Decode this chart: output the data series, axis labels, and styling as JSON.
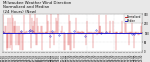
{
  "title": "Milwaukee Weather Wind Direction\nNormalized and Median\n(24 Hours) (New)",
  "bg_color": "#e8e8e8",
  "plot_bg": "#ffffff",
  "ylim": [
    -5,
    365
  ],
  "ytick_vals": [
    0,
    90,
    180,
    270,
    360
  ],
  "ytick_labels": [
    "0",
    "90",
    "180",
    "270",
    "360"
  ],
  "median_value": 180,
  "median_color": "#0000cc",
  "spike_color": "#cc0000",
  "dot_color_blue": "#0000cc",
  "num_points": 288,
  "legend_labels": [
    "Normalized",
    "Median"
  ],
  "legend_colors": [
    "#cc0000",
    "#0000cc"
  ],
  "grid_color": "#c8c8c8",
  "title_fontsize": 2.8,
  "tick_fontsize": 1.8,
  "num_xticks": 48
}
